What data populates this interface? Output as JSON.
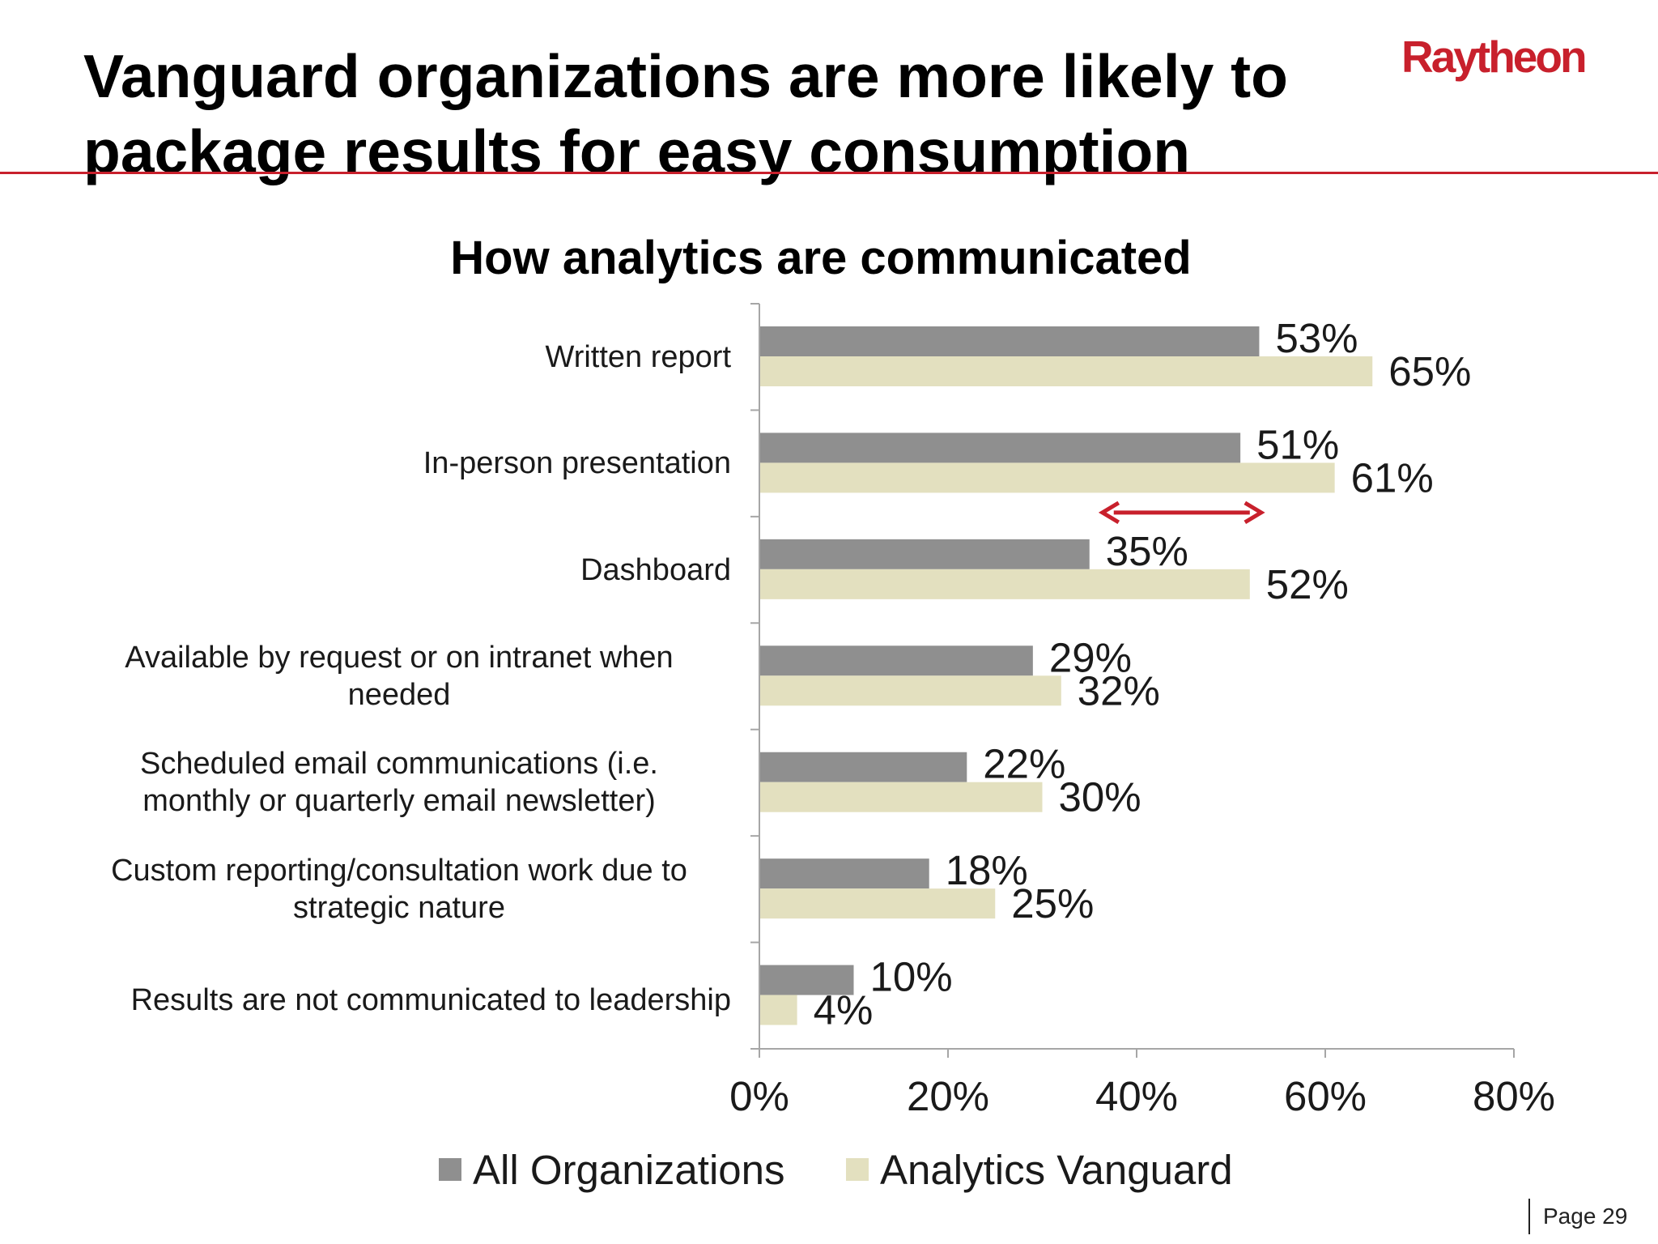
{
  "slide": {
    "title_lines": [
      "Vanguard organizations are more likely to",
      "package results for easy consumption"
    ],
    "logo_text": "Raytheon",
    "page_label": "Page 29",
    "accent_color": "#c8202c"
  },
  "chart_data": {
    "type": "bar",
    "orientation": "horizontal",
    "title": "How analytics are communicated",
    "categories": [
      [
        "Written report"
      ],
      [
        "In-person presentation"
      ],
      [
        "Dashboard"
      ],
      [
        "Available by request or on intranet when",
        "needed"
      ],
      [
        "Scheduled email communications (i.e.",
        "monthly or quarterly email newsletter)"
      ],
      [
        "Custom reporting/consultation work due to",
        "strategic nature"
      ],
      [
        "Results are not communicated to leadership"
      ]
    ],
    "series": [
      {
        "name": "All Organizations",
        "color": "#8f8f8f",
        "values": [
          53,
          51,
          35,
          29,
          22,
          18,
          10
        ]
      },
      {
        "name": "Analytics Vanguard",
        "color": "#e3e0bf",
        "values": [
          65,
          61,
          52,
          32,
          30,
          25,
          4
        ]
      }
    ],
    "value_suffix": "%",
    "xlim": [
      0,
      80
    ],
    "xticks": [
      0,
      20,
      40,
      60,
      80
    ],
    "xtick_labels": [
      "0%",
      "20%",
      "40%",
      "60%",
      "80%"
    ],
    "grid": false,
    "legend_position": "bottom",
    "annotation": {
      "type": "double-arrow",
      "category_index": 2,
      "from_value": 35,
      "to_value": 52,
      "color": "#c8202c"
    }
  }
}
